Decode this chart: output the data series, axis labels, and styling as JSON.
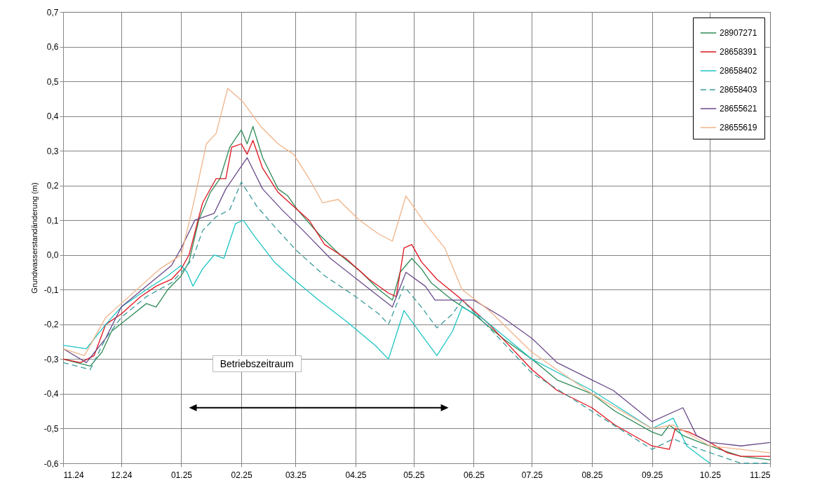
{
  "chart_data": {
    "type": "line",
    "ylabel": "Grundwasserstandänderung (m)",
    "ylim": [
      -0.6,
      0.7
    ],
    "yticks": [
      {
        "value": 0.7,
        "label": "0,7"
      },
      {
        "value": 0.6,
        "label": "0,6"
      },
      {
        "value": 0.5,
        "label": "0,5"
      },
      {
        "value": 0.4,
        "label": "0,4"
      },
      {
        "value": 0.3,
        "label": "0,3"
      },
      {
        "value": 0.2,
        "label": "0,2"
      },
      {
        "value": 0.1,
        "label": "0,1"
      },
      {
        "value": 0,
        "label": "0,0"
      },
      {
        "value": -0.1,
        "label": "-0,1"
      },
      {
        "value": -0.2,
        "label": "-0,2"
      },
      {
        "value": -0.3,
        "label": "-0,3"
      },
      {
        "value": -0.4,
        "label": "-0,4"
      },
      {
        "value": -0.5,
        "label": "-0,5"
      },
      {
        "value": -0.6,
        "label": "-0,6"
      }
    ],
    "xlim": [
      "2024-11-01",
      "2025-11-01"
    ],
    "xticks": [
      {
        "value": "2024-11-01",
        "label": "11.24"
      },
      {
        "value": "2024-12-01",
        "label": "12.24"
      },
      {
        "value": "2025-01-01",
        "label": "01.25"
      },
      {
        "value": "2025-02-01",
        "label": "02.25"
      },
      {
        "value": "2025-03-01",
        "label": "03.25"
      },
      {
        "value": "2025-04-01",
        "label": "04.25"
      },
      {
        "value": "2025-05-01",
        "label": "05.25"
      },
      {
        "value": "2025-06-01",
        "label": "06.25"
      },
      {
        "value": "2025-07-01",
        "label": "07.25"
      },
      {
        "value": "2025-08-01",
        "label": "08.25"
      },
      {
        "value": "2025-09-01",
        "label": "09.25"
      },
      {
        "value": "2025-10-01",
        "label": "10.25"
      },
      {
        "value": "2025-11-01",
        "label": "11.25"
      }
    ],
    "grid": true,
    "legend": "top right",
    "annotations": [
      "Betriebszeitraum"
    ],
    "series": [
      {
        "name": "28907271",
        "color": "#2e8b57",
        "x": [
          "2024-11-01",
          "2024-11-08",
          "2024-11-15",
          "2024-11-21",
          "2024-11-26",
          "2024-12-05",
          "2024-12-14",
          "2024-12-19",
          "2024-12-25",
          "2025-01-01",
          "2025-01-05",
          "2025-01-10",
          "2025-01-16",
          "2025-01-21",
          "2025-01-26",
          "2025-02-01",
          "2025-02-04",
          "2025-02-07",
          "2025-02-12",
          "2025-02-20",
          "2025-02-25",
          "2025-03-02",
          "2025-03-13",
          "2025-03-24",
          "2025-04-04",
          "2025-04-13",
          "2025-04-20",
          "2025-04-24",
          "2025-04-30",
          "2025-05-05",
          "2025-05-10",
          "2025-05-21",
          "2025-06-01",
          "2025-06-16",
          "2025-07-01",
          "2025-07-14",
          "2025-08-01",
          "2025-08-13",
          "2025-09-01",
          "2025-09-06",
          "2025-09-10",
          "2025-09-17",
          "2025-09-26",
          "2025-10-06",
          "2025-10-17",
          "2025-11-01"
        ],
        "values": [
          -0.3,
          -0.31,
          -0.32,
          -0.28,
          -0.22,
          -0.18,
          -0.14,
          -0.15,
          -0.1,
          -0.06,
          -0.02,
          0.1,
          0.18,
          0.22,
          0.31,
          0.36,
          0.32,
          0.37,
          0.28,
          0.19,
          0.17,
          0.13,
          0.06,
          0.0,
          -0.05,
          -0.1,
          -0.13,
          -0.05,
          -0.01,
          -0.04,
          -0.08,
          -0.13,
          -0.17,
          -0.24,
          -0.3,
          -0.36,
          -0.4,
          -0.45,
          -0.51,
          -0.52,
          -0.49,
          -0.52,
          -0.54,
          -0.56,
          -0.58,
          -0.59
        ]
      },
      {
        "name": "28658391",
        "color": "#e0141e",
        "x": [
          "2024-11-01",
          "2024-11-10",
          "2024-11-17",
          "2024-11-23",
          "2024-12-01",
          "2024-12-11",
          "2024-12-19",
          "2024-12-27",
          "2025-01-01",
          "2025-01-05",
          "2025-01-12",
          "2025-01-19",
          "2025-01-24",
          "2025-01-27",
          "2025-02-01",
          "2025-02-04",
          "2025-02-07",
          "2025-02-12",
          "2025-02-20",
          "2025-02-28",
          "2025-03-08",
          "2025-03-16",
          "2025-03-27",
          "2025-04-08",
          "2025-04-18",
          "2025-04-22",
          "2025-04-26",
          "2025-04-30",
          "2025-05-05",
          "2025-05-13",
          "2025-05-24",
          "2025-06-09",
          "2025-07-01",
          "2025-07-14",
          "2025-08-01",
          "2025-08-13",
          "2025-09-01",
          "2025-09-10",
          "2025-09-13",
          "2025-09-20",
          "2025-10-01",
          "2025-10-10",
          "2025-10-17",
          "2025-11-01"
        ],
        "values": [
          -0.3,
          -0.31,
          -0.29,
          -0.2,
          -0.17,
          -0.12,
          -0.09,
          -0.07,
          -0.04,
          0.0,
          0.15,
          0.22,
          0.22,
          0.31,
          0.32,
          0.29,
          0.33,
          0.25,
          0.18,
          0.14,
          0.1,
          0.03,
          -0.01,
          -0.07,
          -0.11,
          -0.12,
          0.02,
          0.03,
          -0.02,
          -0.07,
          -0.12,
          -0.2,
          -0.33,
          -0.39,
          -0.44,
          -0.49,
          -0.55,
          -0.56,
          -0.5,
          -0.51,
          -0.54,
          -0.57,
          -0.58,
          -0.58
        ]
      },
      {
        "name": "28658402",
        "color": "#1fc4c4",
        "x": [
          "2024-11-01",
          "2024-11-13",
          "2024-11-23",
          "2024-12-01",
          "2024-12-14",
          "2024-12-25",
          "2025-01-01",
          "2025-01-04",
          "2025-01-07",
          "2025-01-12",
          "2025-01-18",
          "2025-01-23",
          "2025-01-29",
          "2025-02-02",
          "2025-02-07",
          "2025-02-18",
          "2025-02-28",
          "2025-03-13",
          "2025-03-27",
          "2025-04-11",
          "2025-04-18",
          "2025-04-26",
          "2025-05-05",
          "2025-05-13",
          "2025-05-21",
          "2025-05-26",
          "2025-06-05",
          "2025-07-01",
          "2025-08-01",
          "2025-09-01",
          "2025-09-12",
          "2025-09-19",
          "2025-09-26",
          "2025-10-01"
        ],
        "values": [
          -0.26,
          -0.27,
          -0.2,
          -0.15,
          -0.1,
          -0.06,
          -0.03,
          -0.05,
          -0.09,
          -0.04,
          0.0,
          -0.01,
          0.09,
          0.1,
          0.06,
          -0.02,
          -0.07,
          -0.13,
          -0.19,
          -0.26,
          -0.3,
          -0.16,
          -0.23,
          -0.29,
          -0.22,
          -0.15,
          -0.18,
          -0.3,
          -0.39,
          -0.5,
          -0.47,
          -0.55,
          -0.58,
          -0.6
        ]
      },
      {
        "name": "28658403",
        "color": "#3a9a9a",
        "line_style": "dashed",
        "x": [
          "2024-11-01",
          "2024-11-15",
          "2024-11-23",
          "2024-12-01",
          "2024-12-14",
          "2024-12-27",
          "2025-01-01",
          "2025-01-07",
          "2025-01-12",
          "2025-01-19",
          "2025-01-26",
          "2025-02-01",
          "2025-02-09",
          "2025-02-20",
          "2025-03-02",
          "2025-03-16",
          "2025-04-01",
          "2025-04-13",
          "2025-04-18",
          "2025-04-26",
          "2025-05-05",
          "2025-05-13",
          "2025-05-21",
          "2025-05-26",
          "2025-06-09",
          "2025-07-01",
          "2025-08-01",
          "2025-09-01",
          "2025-09-12",
          "2025-09-26",
          "2025-10-17",
          "2025-11-01"
        ],
        "values": [
          -0.31,
          -0.33,
          -0.24,
          -0.18,
          -0.12,
          -0.08,
          -0.05,
          -0.01,
          0.07,
          0.11,
          0.13,
          0.21,
          0.14,
          0.07,
          0.01,
          -0.06,
          -0.12,
          -0.17,
          -0.2,
          -0.09,
          -0.15,
          -0.21,
          -0.17,
          -0.13,
          -0.21,
          -0.34,
          -0.45,
          -0.56,
          -0.53,
          -0.56,
          -0.6,
          -0.6
        ]
      },
      {
        "name": "28655621",
        "color": "#6a4a8a",
        "x": [
          "2024-11-01",
          "2024-11-13",
          "2024-11-23",
          "2024-12-01",
          "2024-12-14",
          "2024-12-27",
          "2025-01-01",
          "2025-01-08",
          "2025-01-18",
          "2025-01-24",
          "2025-02-04",
          "2025-02-12",
          "2025-02-22",
          "2025-03-05",
          "2025-03-19",
          "2025-04-04",
          "2025-04-20",
          "2025-04-27",
          "2025-05-07",
          "2025-05-12",
          "2025-06-01",
          "2025-06-16",
          "2025-07-01",
          "2025-07-14",
          "2025-08-01",
          "2025-08-12",
          "2025-09-01",
          "2025-09-17",
          "2025-09-24",
          "2025-10-01",
          "2025-10-17",
          "2025-11-01"
        ],
        "values": [
          -0.27,
          -0.31,
          -0.24,
          -0.15,
          -0.09,
          -0.03,
          0.02,
          0.1,
          0.12,
          0.19,
          0.28,
          0.19,
          0.13,
          0.07,
          -0.01,
          -0.08,
          -0.15,
          -0.05,
          -0.09,
          -0.13,
          -0.13,
          -0.18,
          -0.24,
          -0.31,
          -0.36,
          -0.39,
          -0.48,
          -0.44,
          -0.52,
          -0.54,
          -0.55,
          -0.54
        ]
      },
      {
        "name": "28655619",
        "color": "#f0b48a",
        "x": [
          "2024-11-01",
          "2024-11-12",
          "2024-11-23",
          "2024-12-01",
          "2024-12-21",
          "2025-01-01",
          "2025-01-07",
          "2025-01-14",
          "2025-01-19",
          "2025-01-25",
          "2025-02-02",
          "2025-02-11",
          "2025-02-20",
          "2025-02-28",
          "2025-03-08",
          "2025-03-15",
          "2025-03-23",
          "2025-04-03",
          "2025-04-13",
          "2025-04-20",
          "2025-04-27",
          "2025-05-07",
          "2025-05-17",
          "2025-05-26",
          "2025-06-09",
          "2025-07-01",
          "2025-08-01",
          "2025-09-01",
          "2025-09-12",
          "2025-10-01",
          "2025-10-17",
          "2025-11-01"
        ],
        "values": [
          -0.27,
          -0.29,
          -0.18,
          -0.14,
          -0.04,
          0.0,
          0.14,
          0.32,
          0.35,
          0.48,
          0.44,
          0.37,
          0.32,
          0.29,
          0.22,
          0.15,
          0.16,
          0.1,
          0.06,
          0.04,
          0.17,
          0.09,
          0.02,
          -0.1,
          -0.16,
          -0.28,
          -0.4,
          -0.5,
          -0.49,
          -0.55,
          -0.56,
          -0.57
        ]
      }
    ]
  }
}
